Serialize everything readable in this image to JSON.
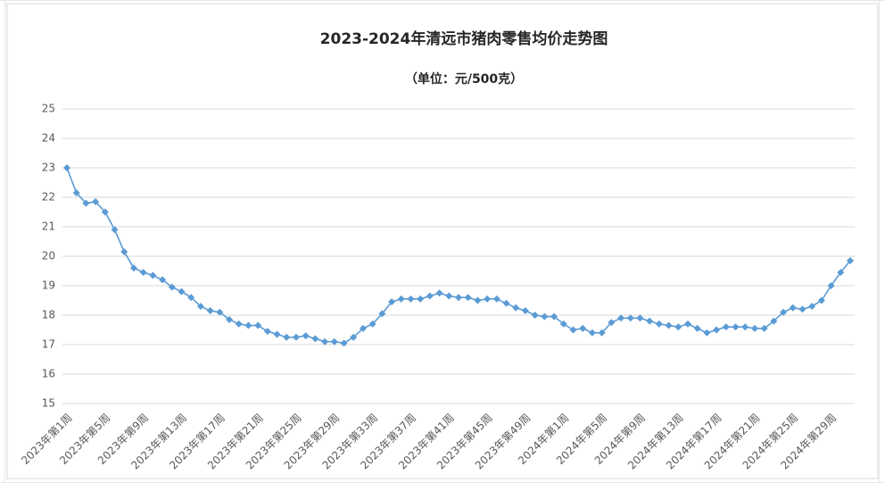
{
  "chart_data": {
    "type": "line",
    "title": "2023-2024年清远市猪肉零售均价走势图",
    "subtitle": "（单位：元/500克）",
    "categories": [
      "2023年第1周",
      null,
      null,
      null,
      "2023年第5周",
      null,
      null,
      null,
      "2023年第9周",
      null,
      null,
      null,
      "2023年第13周",
      null,
      null,
      null,
      "2023年第17周",
      null,
      null,
      null,
      "2023年第21周",
      null,
      null,
      null,
      "2023年第25周",
      null,
      null,
      null,
      "2023年第29周",
      null,
      null,
      null,
      "2023年第33周",
      null,
      null,
      null,
      "2023年第37周",
      null,
      null,
      null,
      "2023年第41周",
      null,
      null,
      null,
      "2023年第45周",
      null,
      null,
      null,
      "2023年第49周",
      null,
      null,
      null,
      "2024年第1周",
      null,
      null,
      null,
      "2024年第5周",
      null,
      null,
      null,
      "2024年第9周",
      null,
      null,
      null,
      "2024年第13周",
      null,
      null,
      null,
      "2024年第17周",
      null,
      null,
      null,
      "2024年第21周",
      null,
      null,
      null,
      "2024年第25周",
      null,
      null,
      null,
      "2024年第29周",
      null,
      null
    ],
    "values": [
      23.0,
      22.15,
      21.8,
      21.85,
      21.5,
      20.9,
      20.15,
      19.6,
      19.45,
      19.35,
      19.2,
      18.95,
      18.8,
      18.6,
      18.3,
      18.15,
      18.1,
      17.85,
      17.7,
      17.65,
      17.65,
      17.45,
      17.35,
      17.25,
      17.25,
      17.3,
      17.2,
      17.1,
      17.1,
      17.05,
      17.25,
      17.55,
      17.7,
      18.05,
      18.45,
      18.55,
      18.55,
      18.55,
      18.65,
      18.75,
      18.65,
      18.6,
      18.6,
      18.5,
      18.55,
      18.55,
      18.4,
      18.25,
      18.15,
      18.0,
      17.95,
      17.95,
      17.7,
      17.5,
      17.55,
      17.4,
      17.4,
      17.75,
      17.9,
      17.9,
      17.9,
      17.8,
      17.7,
      17.65,
      17.6,
      17.7,
      17.55,
      17.4,
      17.5,
      17.6,
      17.6,
      17.6,
      17.55,
      17.55,
      17.8,
      18.1,
      18.25,
      18.2,
      18.3,
      18.5,
      19.0,
      19.45,
      19.85
    ],
    "color": "#5b9bd5",
    "ylim": [
      15,
      25
    ],
    "yticks": [
      15,
      16,
      17,
      18,
      19,
      20,
      21,
      22,
      23,
      24,
      25
    ],
    "grid": true
  }
}
